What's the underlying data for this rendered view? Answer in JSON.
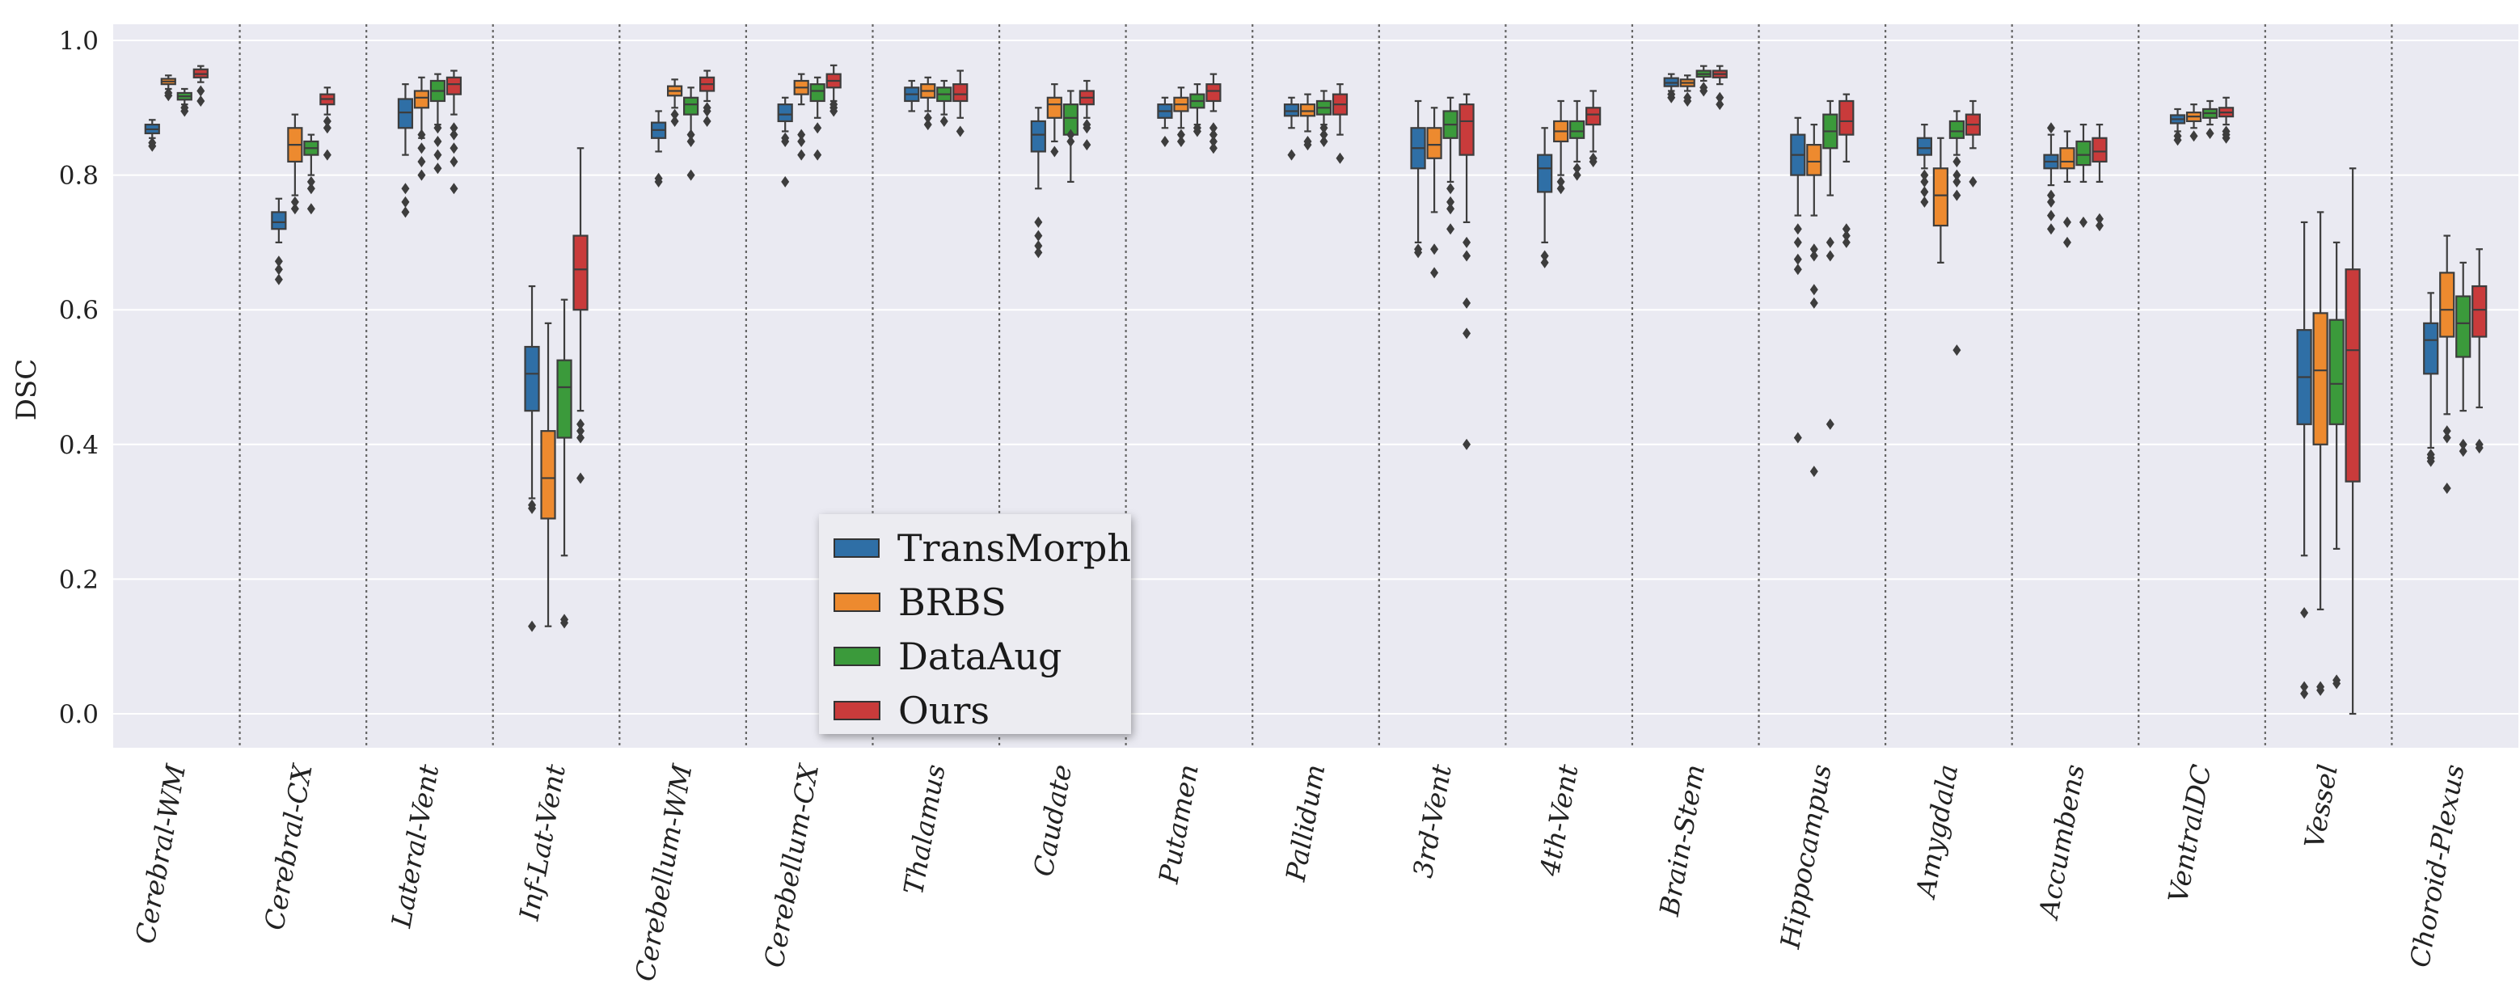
{
  "chart_data": {
    "type": "boxplot",
    "title": "",
    "xlabel": "",
    "ylabel": "DSC",
    "ylim": [
      -0.05,
      1.0
    ],
    "yticks": [
      "0.0",
      "0.2",
      "0.4",
      "0.6",
      "0.8",
      "1.0"
    ],
    "grid": true,
    "legend_position": "bottom-center",
    "colors": {
      "TransMorph": "#2f6fa6",
      "BRBS": "#ed8a2f",
      "DataAug": "#3b9a3b",
      "Ours": "#c93b3b",
      "background": "#eaeaf2",
      "grid": "#ffffff",
      "separator": "#666666"
    },
    "series": [
      {
        "name": "TransMorph"
      },
      {
        "name": "BRBS"
      },
      {
        "name": "DataAug"
      },
      {
        "name": "Ours"
      }
    ],
    "categories": [
      "Cerebral-WM",
      "Cerebral-CX",
      "Lateral-Vent",
      "Inf-Lat-Vent",
      "Cerebellum-WM",
      "Cerebellum-CX",
      "Thalamus",
      "Caudate",
      "Putamen",
      "Pallidum",
      "3rd-Vent",
      "4th-Vent",
      "Brain-Stem",
      "Hippocampus",
      "Amygdala",
      "Accumbens",
      "VentralDC",
      "Vessel",
      "Choroid-Plexus"
    ],
    "boxes": [
      [
        {
          "min": 0.855,
          "q1": 0.862,
          "med": 0.868,
          "q3": 0.875,
          "max": 0.882,
          "out": [
            0.843,
            0.848
          ]
        },
        {
          "min": 0.928,
          "q1": 0.935,
          "med": 0.939,
          "q3": 0.943,
          "max": 0.948,
          "out": [
            0.918,
            0.922
          ]
        },
        {
          "min": 0.905,
          "q1": 0.912,
          "med": 0.917,
          "q3": 0.922,
          "max": 0.928,
          "out": [
            0.895,
            0.9
          ]
        },
        {
          "min": 0.938,
          "q1": 0.945,
          "med": 0.95,
          "q3": 0.957,
          "max": 0.962,
          "out": [
            0.91,
            0.925
          ]
        }
      ],
      [
        {
          "min": 0.7,
          "q1": 0.72,
          "med": 0.73,
          "q3": 0.745,
          "max": 0.765,
          "out": [
            0.645,
            0.66,
            0.672
          ]
        },
        {
          "min": 0.77,
          "q1": 0.82,
          "med": 0.845,
          "q3": 0.87,
          "max": 0.89,
          "out": [
            0.75,
            0.76
          ]
        },
        {
          "min": 0.8,
          "q1": 0.83,
          "med": 0.84,
          "q3": 0.85,
          "max": 0.86,
          "out": [
            0.75,
            0.78,
            0.79
          ]
        },
        {
          "min": 0.89,
          "q1": 0.905,
          "med": 0.913,
          "q3": 0.92,
          "max": 0.93,
          "out": [
            0.83,
            0.87,
            0.88
          ]
        }
      ],
      [
        {
          "min": 0.83,
          "q1": 0.87,
          "med": 0.893,
          "q3": 0.913,
          "max": 0.935,
          "out": [
            0.745,
            0.76,
            0.78
          ]
        },
        {
          "min": 0.855,
          "q1": 0.9,
          "med": 0.915,
          "q3": 0.925,
          "max": 0.945,
          "out": [
            0.8,
            0.82,
            0.84,
            0.86
          ]
        },
        {
          "min": 0.875,
          "q1": 0.91,
          "med": 0.925,
          "q3": 0.94,
          "max": 0.95,
          "out": [
            0.81,
            0.83,
            0.85,
            0.87
          ]
        },
        {
          "min": 0.89,
          "q1": 0.92,
          "med": 0.935,
          "q3": 0.945,
          "max": 0.955,
          "out": [
            0.78,
            0.82,
            0.84,
            0.86,
            0.87
          ]
        }
      ],
      [
        {
          "min": 0.32,
          "q1": 0.45,
          "med": 0.505,
          "q3": 0.545,
          "max": 0.635,
          "out": [
            0.13,
            0.305,
            0.31
          ]
        },
        {
          "min": 0.13,
          "q1": 0.29,
          "med": 0.35,
          "q3": 0.42,
          "max": 0.58,
          "out": []
        },
        {
          "min": 0.235,
          "q1": 0.41,
          "med": 0.485,
          "q3": 0.525,
          "max": 0.615,
          "out": [
            0.135,
            0.14
          ]
        },
        {
          "min": 0.45,
          "q1": 0.6,
          "med": 0.66,
          "q3": 0.71,
          "max": 0.84,
          "out": [
            0.35,
            0.41,
            0.42,
            0.43
          ]
        }
      ],
      [
        {
          "min": 0.835,
          "q1": 0.855,
          "med": 0.867,
          "q3": 0.878,
          "max": 0.895,
          "out": [
            0.79,
            0.795
          ]
        },
        {
          "min": 0.9,
          "q1": 0.918,
          "med": 0.925,
          "q3": 0.932,
          "max": 0.942,
          "out": [
            0.88,
            0.89
          ]
        },
        {
          "min": 0.86,
          "q1": 0.89,
          "med": 0.905,
          "q3": 0.915,
          "max": 0.93,
          "out": [
            0.8,
            0.85,
            0.86
          ]
        },
        {
          "min": 0.91,
          "q1": 0.925,
          "med": 0.935,
          "q3": 0.945,
          "max": 0.955,
          "out": [
            0.88,
            0.895,
            0.9
          ]
        }
      ],
      [
        {
          "min": 0.865,
          "q1": 0.88,
          "med": 0.89,
          "q3": 0.905,
          "max": 0.915,
          "out": [
            0.79,
            0.85,
            0.855
          ]
        },
        {
          "min": 0.905,
          "q1": 0.92,
          "med": 0.93,
          "q3": 0.94,
          "max": 0.95,
          "out": [
            0.83,
            0.85,
            0.86
          ]
        },
        {
          "min": 0.885,
          "q1": 0.91,
          "med": 0.925,
          "q3": 0.935,
          "max": 0.945,
          "out": [
            0.83,
            0.87
          ]
        },
        {
          "min": 0.91,
          "q1": 0.93,
          "med": 0.94,
          "q3": 0.95,
          "max": 0.963,
          "out": [
            0.895,
            0.9,
            0.905
          ]
        }
      ],
      [
        {
          "min": 0.895,
          "q1": 0.91,
          "med": 0.92,
          "q3": 0.93,
          "max": 0.94,
          "out": []
        },
        {
          "min": 0.895,
          "q1": 0.915,
          "med": 0.925,
          "q3": 0.935,
          "max": 0.945,
          "out": [
            0.875,
            0.885
          ]
        },
        {
          "min": 0.89,
          "q1": 0.91,
          "med": 0.92,
          "q3": 0.93,
          "max": 0.94,
          "out": [
            0.88
          ]
        },
        {
          "min": 0.885,
          "q1": 0.91,
          "med": 0.92,
          "q3": 0.935,
          "max": 0.955,
          "out": [
            0.865
          ]
        }
      ],
      [
        {
          "min": 0.78,
          "q1": 0.835,
          "med": 0.86,
          "q3": 0.88,
          "max": 0.9,
          "out": [
            0.685,
            0.695,
            0.71,
            0.73
          ]
        },
        {
          "min": 0.85,
          "q1": 0.885,
          "med": 0.905,
          "q3": 0.915,
          "max": 0.935,
          "out": [
            0.835
          ]
        },
        {
          "min": 0.79,
          "q1": 0.86,
          "med": 0.885,
          "q3": 0.905,
          "max": 0.925,
          "out": [
            0.85,
            0.86
          ]
        },
        {
          "min": 0.885,
          "q1": 0.905,
          "med": 0.915,
          "q3": 0.925,
          "max": 0.94,
          "out": [
            0.845,
            0.87,
            0.875
          ]
        }
      ],
      [
        {
          "min": 0.87,
          "q1": 0.885,
          "med": 0.895,
          "q3": 0.905,
          "max": 0.915,
          "out": [
            0.85
          ]
        },
        {
          "min": 0.87,
          "q1": 0.895,
          "med": 0.905,
          "q3": 0.915,
          "max": 0.93,
          "out": [
            0.85,
            0.86
          ]
        },
        {
          "min": 0.875,
          "q1": 0.9,
          "med": 0.91,
          "q3": 0.92,
          "max": 0.935,
          "out": [
            0.865,
            0.87
          ]
        },
        {
          "min": 0.895,
          "q1": 0.91,
          "med": 0.925,
          "q3": 0.935,
          "max": 0.95,
          "out": [
            0.84,
            0.85,
            0.86,
            0.87
          ]
        }
      ],
      [
        {
          "min": 0.87,
          "q1": 0.888,
          "med": 0.895,
          "q3": 0.905,
          "max": 0.915,
          "out": [
            0.83
          ]
        },
        {
          "min": 0.865,
          "q1": 0.888,
          "med": 0.895,
          "q3": 0.905,
          "max": 0.92,
          "out": [
            0.845,
            0.85
          ]
        },
        {
          "min": 0.875,
          "q1": 0.89,
          "med": 0.9,
          "q3": 0.91,
          "max": 0.925,
          "out": [
            0.85,
            0.86,
            0.87
          ]
        },
        {
          "min": 0.86,
          "q1": 0.89,
          "med": 0.905,
          "q3": 0.92,
          "max": 0.935,
          "out": [
            0.825
          ]
        }
      ],
      [
        {
          "min": 0.7,
          "q1": 0.81,
          "med": 0.84,
          "q3": 0.87,
          "max": 0.91,
          "out": [
            0.685,
            0.69
          ]
        },
        {
          "min": 0.745,
          "q1": 0.825,
          "med": 0.845,
          "q3": 0.87,
          "max": 0.9,
          "out": [
            0.655,
            0.69
          ]
        },
        {
          "min": 0.79,
          "q1": 0.855,
          "med": 0.875,
          "q3": 0.895,
          "max": 0.915,
          "out": [
            0.72,
            0.75,
            0.76,
            0.78
          ]
        },
        {
          "min": 0.73,
          "q1": 0.83,
          "med": 0.88,
          "q3": 0.905,
          "max": 0.92,
          "out": [
            0.4,
            0.565,
            0.61,
            0.68,
            0.7
          ]
        }
      ],
      [
        {
          "min": 0.7,
          "q1": 0.775,
          "med": 0.81,
          "q3": 0.83,
          "max": 0.87,
          "out": [
            0.67,
            0.68
          ]
        },
        {
          "min": 0.8,
          "q1": 0.85,
          "med": 0.865,
          "q3": 0.88,
          "max": 0.91,
          "out": [
            0.78,
            0.79
          ]
        },
        {
          "min": 0.82,
          "q1": 0.855,
          "med": 0.865,
          "q3": 0.88,
          "max": 0.91,
          "out": [
            0.8,
            0.81
          ]
        },
        {
          "min": 0.835,
          "q1": 0.875,
          "med": 0.89,
          "q3": 0.9,
          "max": 0.925,
          "out": [
            0.82,
            0.825
          ]
        }
      ],
      [
        {
          "min": 0.925,
          "q1": 0.932,
          "med": 0.937,
          "q3": 0.944,
          "max": 0.95,
          "out": [
            0.915,
            0.92
          ]
        },
        {
          "min": 0.925,
          "q1": 0.932,
          "med": 0.937,
          "q3": 0.942,
          "max": 0.948,
          "out": [
            0.91,
            0.915
          ]
        },
        {
          "min": 0.94,
          "q1": 0.946,
          "med": 0.95,
          "q3": 0.955,
          "max": 0.962,
          "out": [
            0.925,
            0.93
          ]
        },
        {
          "min": 0.935,
          "q1": 0.945,
          "med": 0.95,
          "q3": 0.955,
          "max": 0.962,
          "out": [
            0.905,
            0.915
          ]
        }
      ],
      [
        {
          "min": 0.74,
          "q1": 0.8,
          "med": 0.83,
          "q3": 0.86,
          "max": 0.885,
          "out": [
            0.41,
            0.66,
            0.675,
            0.7,
            0.72
          ]
        },
        {
          "min": 0.74,
          "q1": 0.8,
          "med": 0.82,
          "q3": 0.845,
          "max": 0.875,
          "out": [
            0.36,
            0.61,
            0.63,
            0.68,
            0.69
          ]
        },
        {
          "min": 0.77,
          "q1": 0.84,
          "med": 0.865,
          "q3": 0.89,
          "max": 0.91,
          "out": [
            0.43,
            0.68,
            0.7
          ]
        },
        {
          "min": 0.82,
          "q1": 0.86,
          "med": 0.88,
          "q3": 0.91,
          "max": 0.92,
          "out": [
            0.7,
            0.71,
            0.72
          ]
        }
      ],
      [
        {
          "min": 0.81,
          "q1": 0.83,
          "med": 0.84,
          "q3": 0.855,
          "max": 0.875,
          "out": [
            0.76,
            0.775,
            0.79,
            0.8
          ]
        },
        {
          "min": 0.67,
          "q1": 0.725,
          "med": 0.77,
          "q3": 0.81,
          "max": 0.855,
          "out": []
        },
        {
          "min": 0.83,
          "q1": 0.855,
          "med": 0.865,
          "q3": 0.88,
          "max": 0.895,
          "out": [
            0.54,
            0.77,
            0.79,
            0.8,
            0.82
          ]
        },
        {
          "min": 0.84,
          "q1": 0.86,
          "med": 0.875,
          "q3": 0.89,
          "max": 0.91,
          "out": [
            0.79
          ]
        }
      ],
      [
        {
          "min": 0.785,
          "q1": 0.81,
          "med": 0.82,
          "q3": 0.83,
          "max": 0.86,
          "out": [
            0.72,
            0.74,
            0.76,
            0.77,
            0.87
          ]
        },
        {
          "min": 0.79,
          "q1": 0.81,
          "med": 0.82,
          "q3": 0.84,
          "max": 0.865,
          "out": [
            0.7,
            0.73
          ]
        },
        {
          "min": 0.79,
          "q1": 0.815,
          "med": 0.83,
          "q3": 0.85,
          "max": 0.875,
          "out": [
            0.73
          ]
        },
        {
          "min": 0.79,
          "q1": 0.82,
          "med": 0.835,
          "q3": 0.855,
          "max": 0.875,
          "out": [
            0.725,
            0.735
          ]
        }
      ],
      [
        {
          "min": 0.865,
          "q1": 0.877,
          "med": 0.883,
          "q3": 0.889,
          "max": 0.898,
          "out": [
            0.852,
            0.858
          ]
        },
        {
          "min": 0.87,
          "q1": 0.88,
          "med": 0.887,
          "q3": 0.893,
          "max": 0.905,
          "out": [
            0.858
          ]
        },
        {
          "min": 0.875,
          "q1": 0.885,
          "med": 0.892,
          "q3": 0.898,
          "max": 0.91,
          "out": [
            0.862
          ]
        },
        {
          "min": 0.875,
          "q1": 0.887,
          "med": 0.893,
          "q3": 0.9,
          "max": 0.915,
          "out": [
            0.855,
            0.86,
            0.865
          ]
        }
      ],
      [
        {
          "min": 0.235,
          "q1": 0.43,
          "med": 0.5,
          "q3": 0.57,
          "max": 0.73,
          "out": [
            0.03,
            0.04,
            0.15
          ]
        },
        {
          "min": 0.155,
          "q1": 0.4,
          "med": 0.51,
          "q3": 0.595,
          "max": 0.745,
          "out": [
            0.035,
            0.04
          ]
        },
        {
          "min": 0.245,
          "q1": 0.43,
          "med": 0.49,
          "q3": 0.585,
          "max": 0.7,
          "out": [
            0.045,
            0.05
          ]
        },
        {
          "min": 0.0,
          "q1": 0.345,
          "med": 0.54,
          "q3": 0.66,
          "max": 0.81,
          "out": []
        }
      ],
      [
        {
          "min": 0.395,
          "q1": 0.505,
          "med": 0.555,
          "q3": 0.58,
          "max": 0.625,
          "out": [
            0.375,
            0.38,
            0.385
          ]
        },
        {
          "min": 0.445,
          "q1": 0.56,
          "med": 0.6,
          "q3": 0.655,
          "max": 0.71,
          "out": [
            0.335,
            0.41,
            0.42
          ]
        },
        {
          "min": 0.45,
          "q1": 0.53,
          "med": 0.58,
          "q3": 0.62,
          "max": 0.67,
          "out": [
            0.39,
            0.4
          ]
        },
        {
          "min": 0.455,
          "q1": 0.56,
          "med": 0.6,
          "q3": 0.635,
          "max": 0.69,
          "out": [
            0.395,
            0.4
          ]
        }
      ]
    ]
  }
}
